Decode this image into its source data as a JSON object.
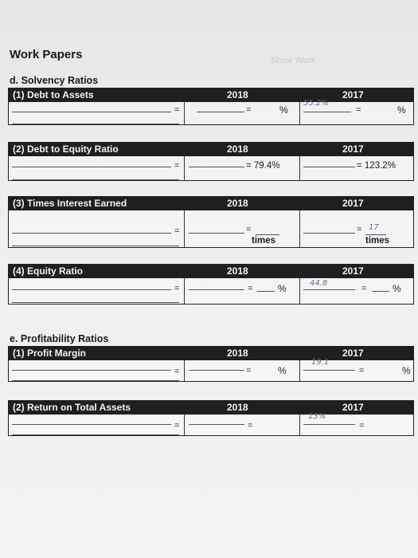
{
  "page": {
    "title": "Work Papers",
    "watermark": "Show Work"
  },
  "sections": {
    "solvency_title": "d. Solvency Ratios",
    "profitability_title": "e. Profitability Ratios"
  },
  "ratios": {
    "debt_to_assets": {
      "label": "(1) Debt to Assets",
      "year1": "2018",
      "year2": "2017",
      "eq": "=",
      "pct": "%",
      "handwritten_2017": "55.2%"
    },
    "debt_to_equity": {
      "label": "(2) Debt to Equity Ratio",
      "year1": "2018",
      "year2": "2017",
      "eq": "=",
      "value_2018": "= 79.4%",
      "value_2017": "= 123.2%"
    },
    "times_interest": {
      "label": "(3) Times Interest Earned",
      "year1": "2018",
      "year2": "2017",
      "eq": "=",
      "times": "times",
      "handwritten_2017": "17"
    },
    "equity_ratio": {
      "label": "(4) Equity Ratio",
      "year1": "2018",
      "year2": "2017",
      "eq": "=",
      "pct": "%",
      "handwritten_2017": "44.8"
    },
    "profit_margin": {
      "label": "(1) Profit Margin",
      "year1": "2018",
      "year2": "2017",
      "eq": "=",
      "pct": "%",
      "handwritten_2017": "19.1"
    },
    "return_on_assets": {
      "label": "(2) Return on Total Assets",
      "year1": "2018",
      "year2": "2017",
      "eq": "=",
      "handwritten_2017": "13%"
    }
  }
}
